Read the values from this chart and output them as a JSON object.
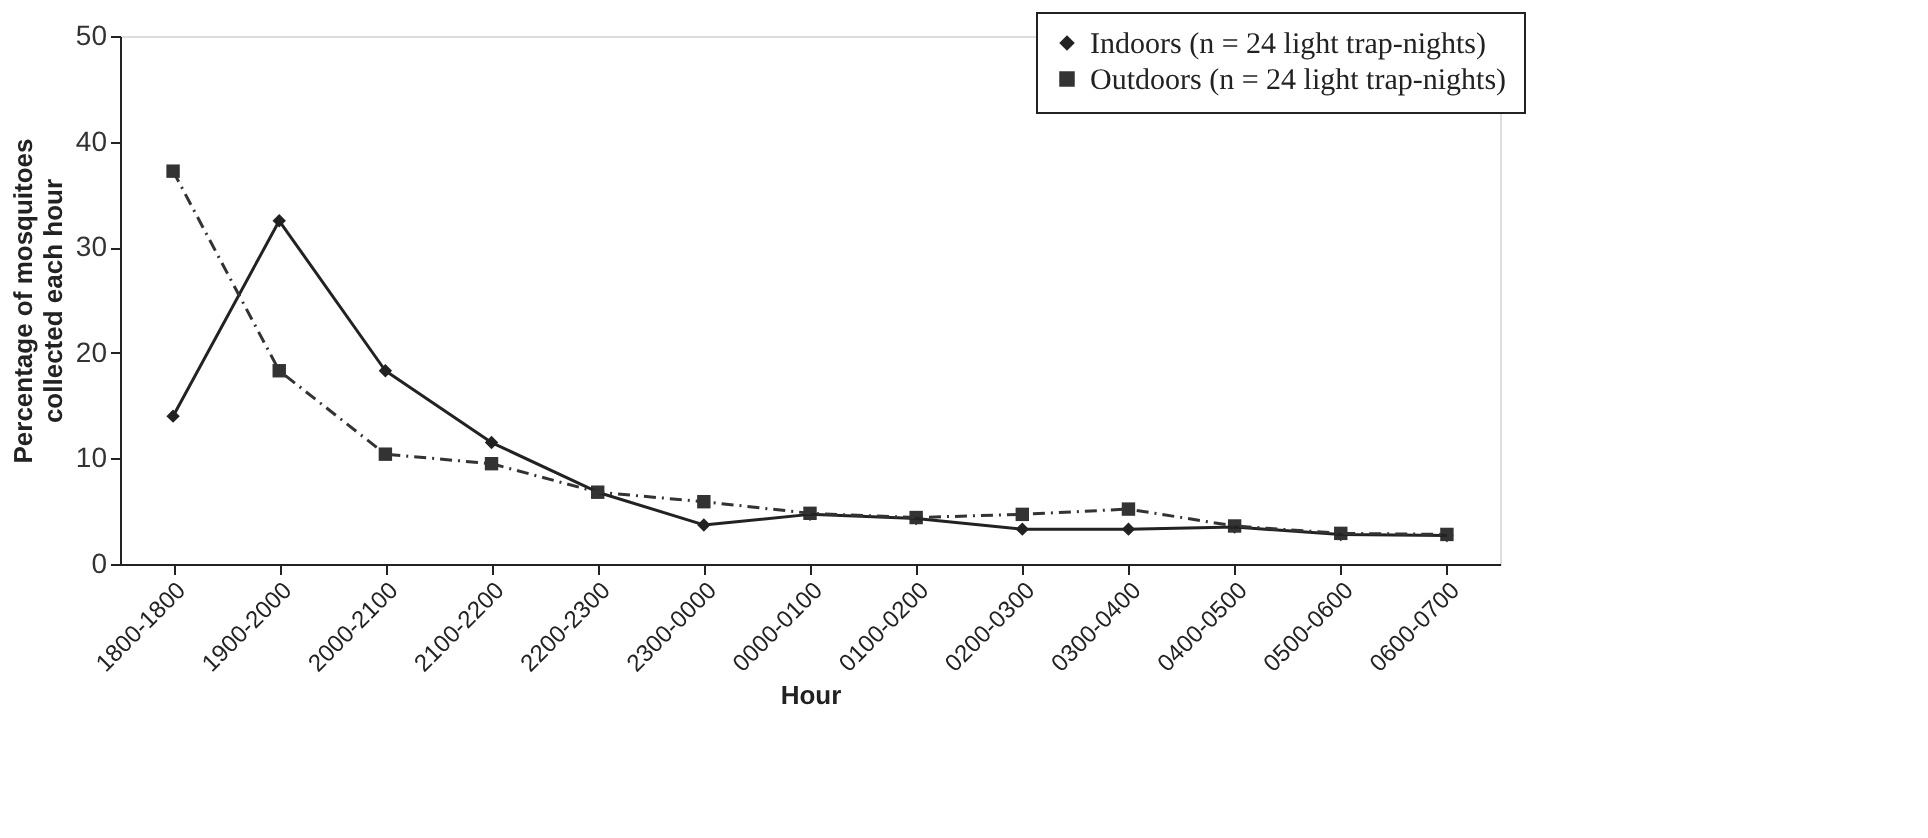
{
  "chart_data": {
    "type": "line",
    "xlabel": "Hour",
    "ylabel": "Percentage of mosquitoes collected each hour",
    "categories": [
      "1800-1800",
      "1900-2000",
      "2000-2100",
      "2100-2200",
      "2200-2300",
      "2300-0000",
      "0000-0100",
      "0100-0200",
      "0200-0300",
      "0300-0400",
      "0400-0500",
      "0500-0600",
      "0600-0700"
    ],
    "series": [
      {
        "name": "Indoors (n = 24 light trap-nights)",
        "color": "#222222",
        "marker": "diamond",
        "line_style": "solid",
        "values": [
          14,
          32.5,
          18.3,
          11.5,
          6.8,
          3.7,
          4.7,
          4.3,
          3.3,
          3.3,
          3.5,
          2.8,
          2.7
        ]
      },
      {
        "name": "Outdoors (n = 24 light trap-nights)",
        "color": "#333333",
        "marker": "square",
        "line_style": "dashed",
        "values": [
          37.2,
          18.3,
          10.4,
          9.5,
          6.8,
          5.9,
          4.8,
          4.4,
          4.7,
          5.2,
          3.6,
          2.9,
          2.8
        ]
      }
    ],
    "ylim": [
      0,
      50
    ],
    "yticks": [
      0,
      10,
      20,
      30,
      40,
      50
    ],
    "grid": false,
    "legend": "top right"
  }
}
